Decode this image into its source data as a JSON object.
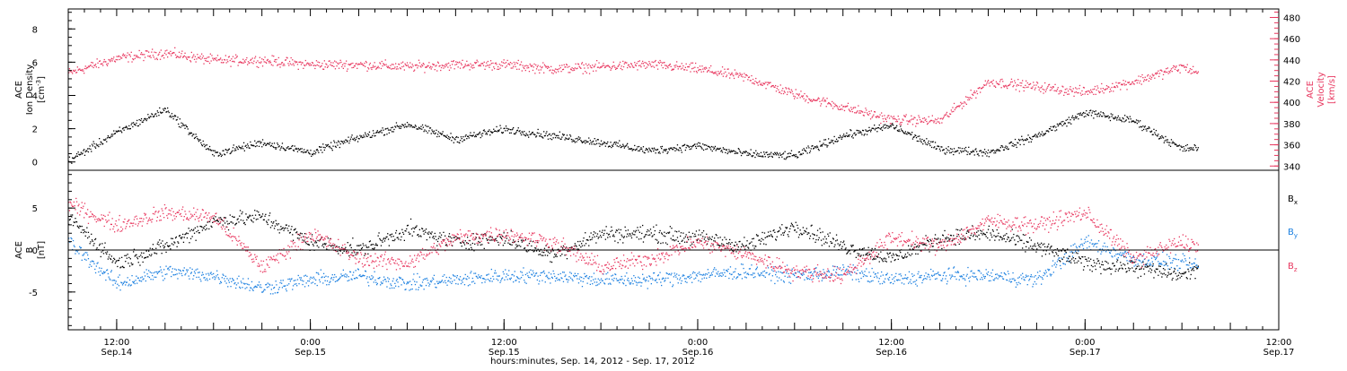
{
  "colors": {
    "black": "#000000",
    "pink": "#e8375f",
    "blue": "#1a7fe0"
  },
  "chart_data": [
    {
      "type": "scatter",
      "panel": "top",
      "ylabel_left_line1": "ACE",
      "ylabel_left_line2": "Ion Density",
      "ylabel_left_units": "[cm",
      "ylabel_left_units_sup": "-3",
      "ylabel_left_units_close": "]",
      "ylabel_right_line1": "ACE",
      "ylabel_right_line2": "Velocity",
      "ylabel_right_units": "[km/s]",
      "ylim_left": [
        -0.5,
        9.2
      ],
      "yticks_left": [
        "0",
        "2",
        "4",
        "6",
        "8"
      ],
      "ylim_right": [
        336,
        488
      ],
      "yticks_right": [
        "340",
        "360",
        "380",
        "400",
        "420",
        "440",
        "460",
        "480"
      ],
      "series": [
        {
          "axis": "left",
          "color": "#000000",
          "x": [
            0,
            3,
            6,
            9,
            12,
            15,
            18,
            21,
            24,
            27,
            30,
            33,
            36,
            39,
            42,
            45,
            48,
            51,
            54,
            57,
            60,
            63,
            66,
            69,
            70
          ],
          "values": [
            0.1,
            1.8,
            3.2,
            0.5,
            1.2,
            0.6,
            1.5,
            2.3,
            1.4,
            2.0,
            1.6,
            1.2,
            0.7,
            1.0,
            0.5,
            0.4,
            1.6,
            2.2,
            0.8,
            0.6,
            1.6,
            3.0,
            2.5,
            0.8,
            0.9
          ]
        },
        {
          "axis": "right",
          "color": "#e8375f",
          "x": [
            0,
            3,
            6,
            9,
            12,
            15,
            18,
            21,
            24,
            27,
            30,
            33,
            36,
            39,
            42,
            45,
            48,
            51,
            54,
            57,
            60,
            63,
            66,
            69,
            70
          ],
          "values": [
            428,
            442,
            447,
            440,
            440,
            436,
            436,
            434,
            436,
            436,
            432,
            434,
            436,
            432,
            424,
            408,
            396,
            384,
            383,
            420,
            415,
            410,
            420,
            434,
            428
          ]
        }
      ]
    },
    {
      "type": "scatter",
      "panel": "bottom",
      "ylabel_line1": "ACE",
      "ylabel_line2": "B",
      "ylabel_units": "[nT]",
      "ylim": [
        -9.5,
        9.5
      ],
      "yticks": [
        "-5",
        "0",
        "5"
      ],
      "legend_position": "right",
      "legend": [
        {
          "name": "B",
          "sub": "x",
          "color": "#000000"
        },
        {
          "name": "B",
          "sub": "y",
          "color": "#1a7fe0"
        },
        {
          "name": "B",
          "sub": "z",
          "color": "#e8375f"
        }
      ],
      "series": [
        {
          "name": "Bx",
          "color": "#000000",
          "x": [
            0,
            3,
            6,
            9,
            12,
            15,
            18,
            21,
            24,
            27,
            30,
            33,
            36,
            39,
            42,
            45,
            48,
            51,
            54,
            57,
            60,
            63,
            66,
            69,
            70
          ],
          "values": [
            4.0,
            -1.5,
            0.5,
            3.5,
            4.0,
            1.0,
            0.0,
            2.5,
            1.0,
            1.5,
            -0.5,
            2.0,
            2.0,
            1.5,
            0.5,
            3.0,
            0.5,
            -1.0,
            1.5,
            2.0,
            0.5,
            -1.5,
            -2.0,
            -3.0,
            -2.0
          ]
        },
        {
          "name": "By",
          "color": "#1a7fe0",
          "x": [
            0,
            3,
            6,
            9,
            12,
            15,
            18,
            21,
            24,
            27,
            30,
            33,
            36,
            39,
            42,
            45,
            48,
            51,
            54,
            57,
            60,
            63,
            66,
            69,
            70
          ],
          "values": [
            1.0,
            -4.0,
            -2.5,
            -3.0,
            -4.5,
            -3.5,
            -3.0,
            -4.0,
            -3.5,
            -3.0,
            -3.0,
            -3.5,
            -3.5,
            -3.0,
            -2.5,
            -3.0,
            -2.5,
            -3.5,
            -3.0,
            -3.0,
            -3.5,
            1.0,
            -1.0,
            -1.5,
            -2.0
          ]
        },
        {
          "name": "Bz",
          "color": "#e8375f",
          "x": [
            0,
            3,
            6,
            9,
            12,
            15,
            18,
            21,
            24,
            27,
            30,
            33,
            36,
            39,
            42,
            45,
            48,
            51,
            54,
            57,
            60,
            63,
            66,
            69,
            70
          ],
          "values": [
            5.5,
            3.0,
            4.5,
            4.0,
            -2.0,
            2.0,
            -1.0,
            -1.5,
            1.5,
            2.0,
            1.0,
            -2.0,
            -1.0,
            1.0,
            -0.5,
            -2.5,
            -3.0,
            1.5,
            0.5,
            3.5,
            3.0,
            4.5,
            -1.0,
            1.0,
            0.5
          ]
        }
      ]
    }
  ],
  "x_axis": {
    "xlim": [
      0,
      75
    ],
    "tick_labels": [
      {
        "x": 3,
        "time": "12:00",
        "date": "Sep.14"
      },
      {
        "x": 15,
        "time": "0:00",
        "date": "Sep.15"
      },
      {
        "x": 27,
        "time": "12:00",
        "date": "Sep.15"
      },
      {
        "x": 39,
        "time": "0:00",
        "date": "Sep.16"
      },
      {
        "x": 51,
        "time": "12:00",
        "date": "Sep.16"
      },
      {
        "x": 63,
        "time": "0:00",
        "date": "Sep.17"
      },
      {
        "x": 75,
        "time": "12:00",
        "date": "Sep.17"
      }
    ],
    "title": "hours:minutes, Sep. 14, 2012 - Sep. 17, 2012"
  }
}
